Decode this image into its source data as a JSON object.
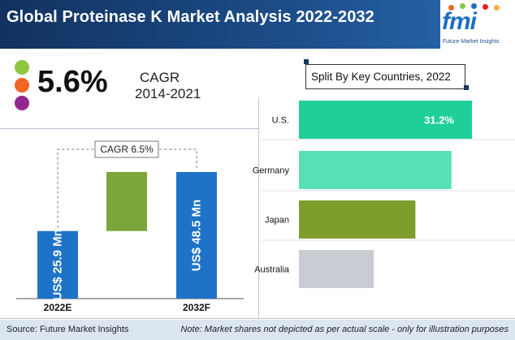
{
  "header": {
    "title": "Global Proteinase K Market Analysis 2022-2032"
  },
  "logo": {
    "text": "fmi",
    "subtitle": "Future Market Insights"
  },
  "kpi": {
    "value": "5.6%",
    "label": "CAGR",
    "period": "2014-2021",
    "dot_colors": [
      "#8dc63f",
      "#f26522",
      "#92278f"
    ]
  },
  "split_box": {
    "title": "Split By Key Countries, 2022"
  },
  "footer": {
    "source": "Source: Future Market Insights",
    "note": "Note: Market shares not depicted as per actual scale - only for illustration purposes"
  },
  "chart_data": [
    {
      "type": "bar",
      "categories": [
        "2022E",
        "2032F"
      ],
      "values": [
        25.9,
        48.5
      ],
      "value_labels": [
        "US$ 25.9 Mn",
        "US$ 48.5 Mn"
      ],
      "unit": "US$ Mn",
      "annotation": "CAGR 6.5%",
      "colors": {
        "bar": "#1e73c9",
        "increment": "#7aa63a"
      }
    },
    {
      "type": "bar",
      "orientation": "horizontal",
      "title": "Split By Key Countries, 2022",
      "categories": [
        "U.S.",
        "Germany",
        "Japan",
        "Australia"
      ],
      "values": [
        31.2,
        27.5,
        21.0,
        13.5
      ],
      "data_labels": [
        "31.2%",
        "",
        "",
        ""
      ],
      "colors": [
        "#1fcf9a",
        "#56e0b8",
        "#7e9e2c",
        "#c9ccd3"
      ]
    }
  ]
}
